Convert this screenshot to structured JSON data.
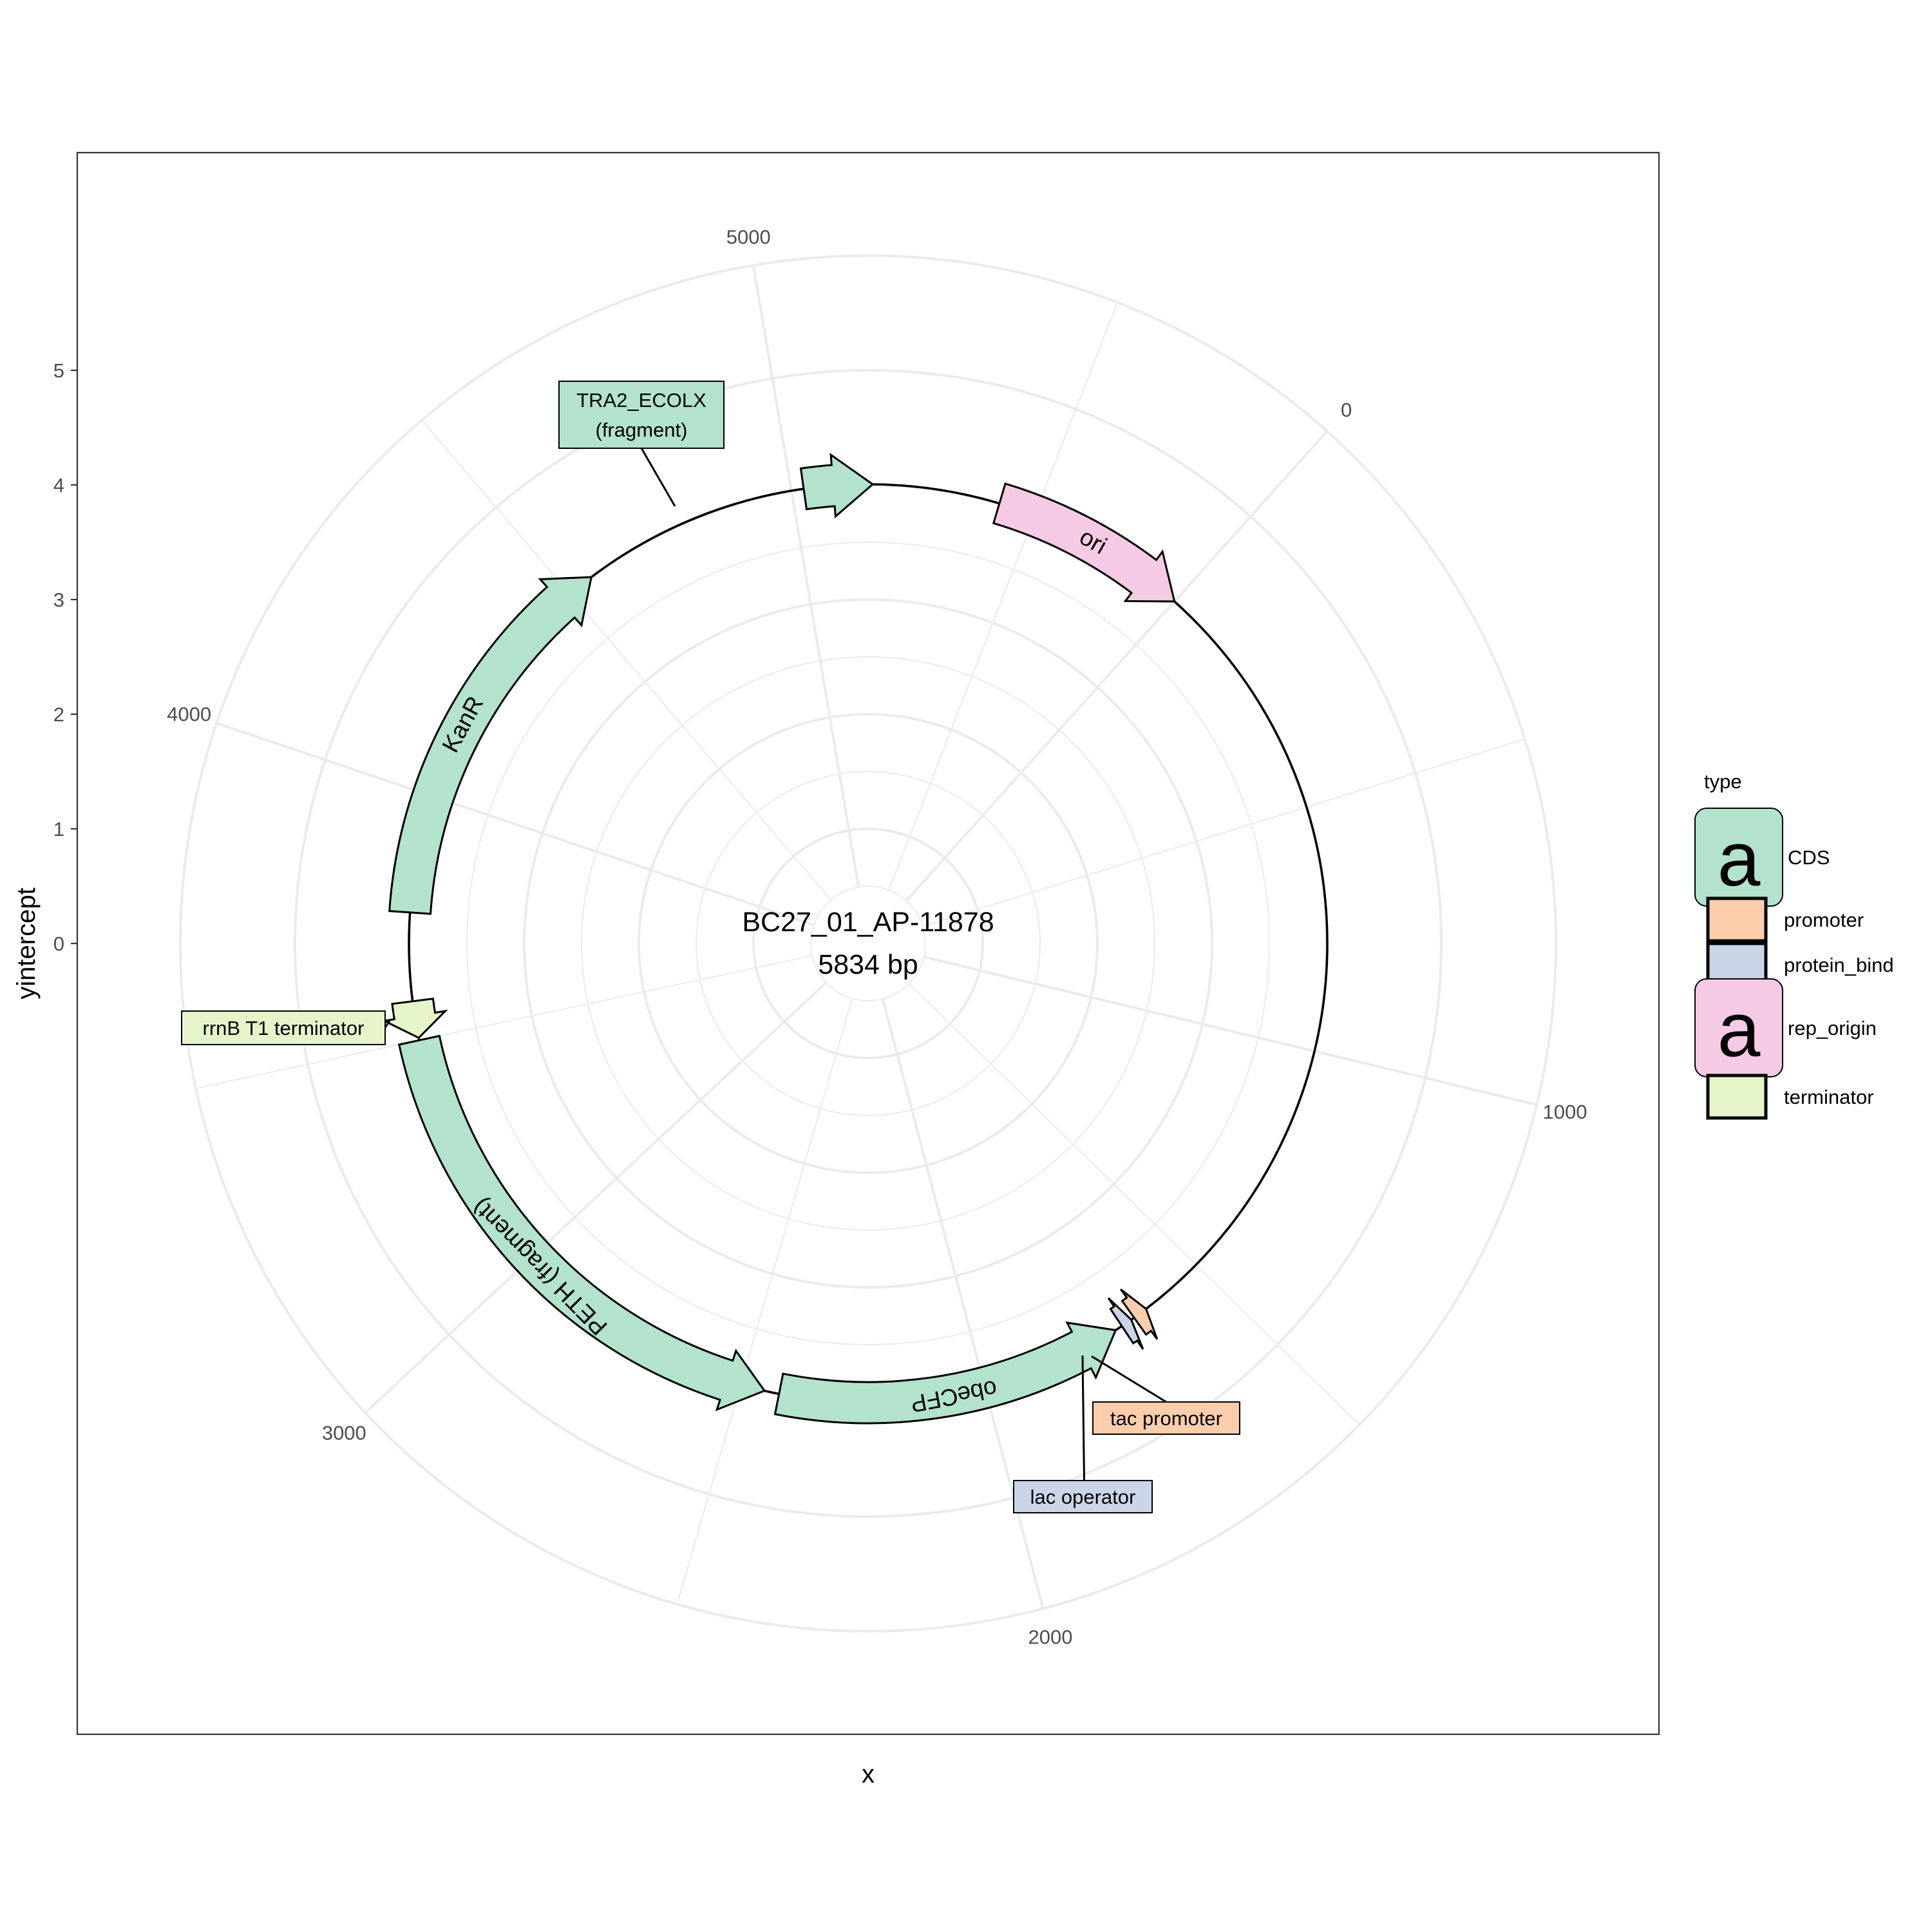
{
  "chart_data": {
    "type": "plasmid-map",
    "plasmid_name": "BC27_01_AP-11878",
    "plasmid_size_label": "5834 bp",
    "length_bp": 5834,
    "xlabel": "x",
    "ylabel": "yintercept",
    "angular_ticks": [
      0,
      1000,
      2000,
      3000,
      4000,
      5000
    ],
    "radial_ticks": [
      0,
      1,
      2,
      3,
      4,
      5
    ],
    "grid": true,
    "legend_title": "type",
    "legend_placement": "right",
    "types": [
      {
        "name": "CDS",
        "color": "#b3e2cd"
      },
      {
        "name": "promoter",
        "color": "#fdcdac"
      },
      {
        "name": "protein_bind",
        "color": "#cbd5e8"
      },
      {
        "name": "rep_origin",
        "color": "#f4cae4"
      },
      {
        "name": "terminator",
        "color": "#e6f5c9"
      }
    ],
    "features": [
      {
        "name": "ori",
        "type": "rep_origin",
        "start": 5425,
        "end": 5834,
        "strand": "+",
        "labeled_on_arc": true
      },
      {
        "name": "tac promoter",
        "type": "promoter",
        "start": 1635,
        "end": 1665,
        "strand": "-",
        "labeled_on_arc": false
      },
      {
        "name": "lac operator",
        "type": "protein_bind",
        "start": 1672,
        "end": 1695,
        "strand": "-",
        "labeled_on_arc": false
      },
      {
        "name": "obeCFP",
        "type": "CDS",
        "start": 1710,
        "end": 2420,
        "strand": "-",
        "labeled_on_arc": true
      },
      {
        "name": "PETH (fragment)",
        "type": "CDS",
        "start": 2450,
        "end": 3500,
        "strand": "-",
        "labeled_on_arc": true
      },
      {
        "name": "rrnB T1 terminator",
        "type": "terminator",
        "start": 3505,
        "end": 3580,
        "strand": "-",
        "labeled_on_arc": false
      },
      {
        "name": "KanR",
        "type": "CDS",
        "start": 3760,
        "end": 4555,
        "strand": "+",
        "labeled_on_arc": true
      },
      {
        "name": "TRA2_ECOLX (fragment)",
        "type": "CDS",
        "start": 5025,
        "end": 5165,
        "strand": "+",
        "labeled_on_arc": false
      }
    ],
    "callouts": {
      "tac promoter": [
        "tac promoter"
      ],
      "lac operator": [
        "lac operator"
      ],
      "rrnB T1 terminator": [
        "rrnB T1 terminator"
      ],
      "TRA2_ECOLX (fragment)": [
        "TRA2_ECOLX",
        "(fragment)"
      ]
    },
    "legend_letter": "a"
  }
}
